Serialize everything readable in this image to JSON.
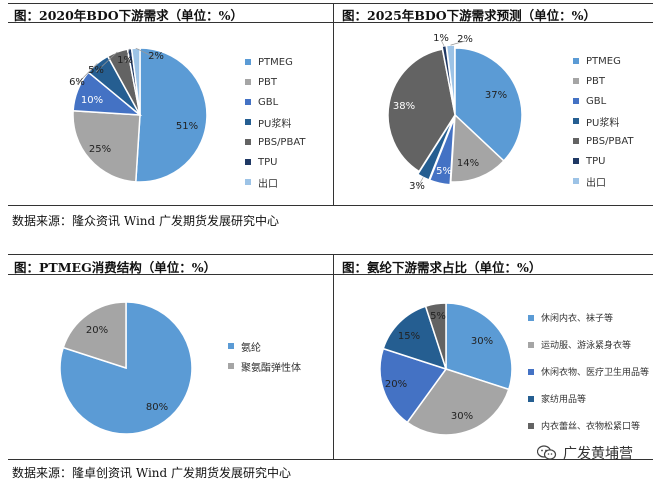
{
  "panels": {
    "p1": {
      "title": "图：2020年BDO下游需求（单位：%）"
    },
    "p2": {
      "title": "图：2025年BDO下游需求预测（单位：%）"
    },
    "p3": {
      "title": "图：PTMEG消费结构（单位：%）"
    },
    "p4": {
      "title": "图：氨纶下游需求占比（单位：%）"
    }
  },
  "sources": {
    "top": "数据来源：隆众资讯  Wind  广发期货发展研究中心",
    "bottom": "数据来源：隆卓创资讯  Wind  广发期货发展研究中心"
  },
  "watermark": {
    "text": "广发黄埔营",
    "icon": "wechat-icon"
  },
  "chart_data": [
    {
      "type": "pie",
      "title": "图：2020年BDO下游需求（单位：%）",
      "categories": [
        "PTMEG",
        "PBT",
        "GBL",
        "PU浆料",
        "PBS/PBAT",
        "TPU",
        "出口"
      ],
      "values": [
        51,
        25,
        10,
        6,
        5,
        1,
        2
      ],
      "value_labels": [
        "51%",
        "25%",
        "10%",
        "6%",
        "5%",
        "1%",
        "2%"
      ],
      "colors": [
        "#5b9bd5",
        "#a5a5a5",
        "#4472c4",
        "#255e91",
        "#636363",
        "#1f3864",
        "#9dc3e6"
      ],
      "legend_position": "right"
    },
    {
      "type": "pie",
      "title": "图：2025年BDO下游需求预测（单位：%）",
      "categories": [
        "PTMEG",
        "PBT",
        "GBL",
        "PU浆料",
        "PBS/PBAT",
        "TPU",
        "出口"
      ],
      "values": [
        37,
        14,
        5,
        3,
        38,
        1,
        2
      ],
      "value_labels": [
        "37%",
        "14%",
        "5%",
        "3%",
        "38%",
        "1%",
        "2%"
      ],
      "colors": [
        "#5b9bd5",
        "#a5a5a5",
        "#4472c4",
        "#255e91",
        "#636363",
        "#1f3864",
        "#9dc3e6"
      ],
      "legend_position": "right"
    },
    {
      "type": "pie",
      "title": "图：PTMEG消费结构（单位：%）",
      "categories": [
        "氨纶",
        "聚氨酯弹性体"
      ],
      "values": [
        80,
        20
      ],
      "value_labels": [
        "80%",
        "20%"
      ],
      "colors": [
        "#5b9bd5",
        "#a5a5a5"
      ],
      "legend_position": "right"
    },
    {
      "type": "pie",
      "title": "图：氨纶下游需求占比（单位：%）",
      "categories": [
        "休闲内衣、袜子等",
        "运动服、游泳紧身衣等",
        "休闲衣物、医疗卫生用品等",
        "家纺用品等",
        "内衣蕾丝、衣物松紧口等"
      ],
      "values": [
        30,
        30,
        20,
        15,
        5
      ],
      "value_labels": [
        "30%",
        "30%",
        "20%",
        "15%",
        "5%"
      ],
      "colors": [
        "#5b9bd5",
        "#a5a5a5",
        "#4472c4",
        "#255e91",
        "#636363"
      ],
      "legend_position": "right"
    }
  ]
}
